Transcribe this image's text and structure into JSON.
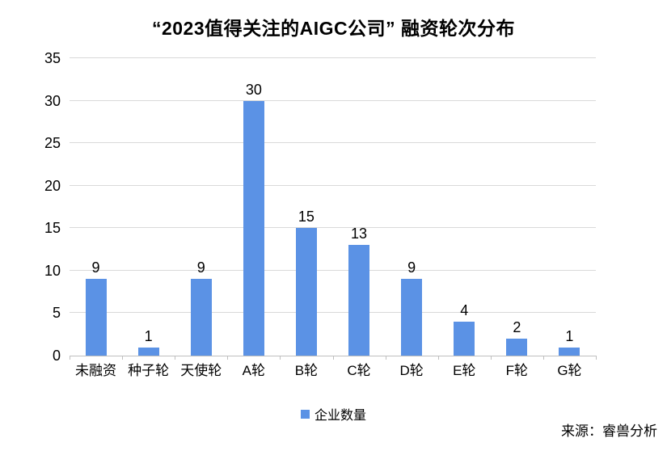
{
  "chart_data": {
    "type": "bar",
    "title": "“2023值得关注的AIGC公司” 融资轮次分布",
    "categories": [
      "未融资",
      "种子轮",
      "天使轮",
      "A轮",
      "B轮",
      "C轮",
      "D轮",
      "E轮",
      "F轮",
      "G轮"
    ],
    "values": [
      9,
      1,
      9,
      30,
      15,
      13,
      9,
      4,
      2,
      1
    ],
    "series_name": "企业数量",
    "xlabel": "",
    "ylabel": "",
    "ylim": [
      0,
      35
    ],
    "yticks": [
      0,
      5,
      10,
      15,
      20,
      25,
      30,
      35
    ],
    "grid": true,
    "data_labels": true,
    "legend_position": "bottom",
    "colors": {
      "bar": "#5b92e5",
      "gridline": "#d9d9d9",
      "axis_line": "#bfbfbf",
      "text": "#000000"
    },
    "source": "来源：睿兽分析"
  }
}
